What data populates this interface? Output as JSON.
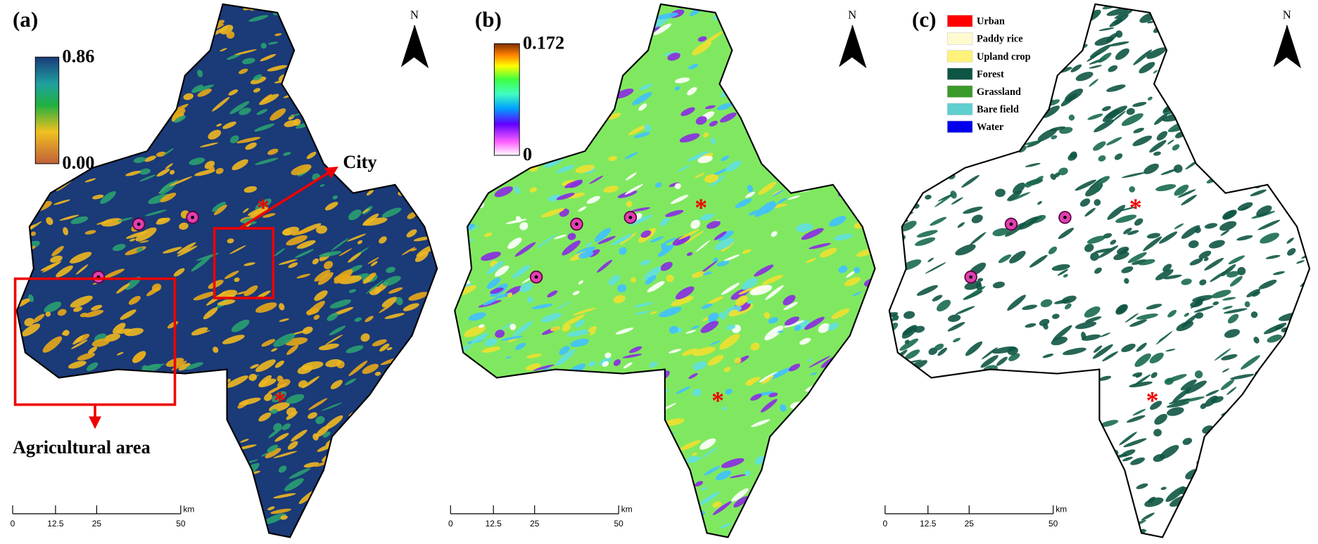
{
  "panels": [
    {
      "label": "(a)",
      "north": "N",
      "colorbar": {
        "max": "0.86",
        "min": "0.00"
      },
      "annotations": {
        "city": "City",
        "agricultural": "Agricultural area"
      },
      "scale_bar": {
        "ticks": [
          "0",
          "12.5",
          "25",
          "50"
        ],
        "unit": "km"
      }
    },
    {
      "label": "(b)",
      "north": "N",
      "colorbar": {
        "max": "0.172",
        "min": "0"
      },
      "scale_bar": {
        "ticks": [
          "0",
          "12.5",
          "25",
          "50"
        ],
        "unit": "km"
      }
    },
    {
      "label": "(c)",
      "north": "N",
      "legend": [
        {
          "name": "Urban",
          "color": "#ff0000"
        },
        {
          "name": "Paddy rice",
          "color": "#fffbd0"
        },
        {
          "name": "Upland crop",
          "color": "#fff27a"
        },
        {
          "name": "Forest",
          "color": "#0f5544"
        },
        {
          "name": "Grassland",
          "color": "#3a9a2a"
        },
        {
          "name": "Bare field",
          "color": "#5fcfcf"
        },
        {
          "name": "Water",
          "color": "#0000ee"
        }
      ],
      "scale_bar": {
        "ticks": [
          "0",
          "12.5",
          "25",
          "50"
        ],
        "unit": "km"
      }
    }
  ]
}
